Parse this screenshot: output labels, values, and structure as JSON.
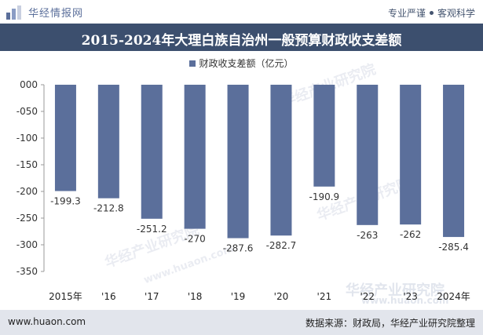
{
  "header": {
    "brand": "华经情报网",
    "slogan_left": "专业严谨",
    "slogan_right": "客观科学"
  },
  "title": "2015-2024年大理白族自治州一般预算财政收支差额",
  "footer": {
    "url": "www.huaon.com",
    "source": "数据来源：财政局，华经产业研究院整理"
  },
  "watermark": {
    "name": "华经产业研究院",
    "url": "www.huaon.com"
  },
  "colors": {
    "bar": "#5b6f9b",
    "title_bg": "#3c4f6e",
    "footer_bg": "#e2e5ec"
  },
  "chart_data": {
    "type": "bar",
    "categories": [
      "2015年",
      "'16",
      "'17",
      "'18",
      "'19",
      "'20",
      "'21",
      "'22",
      "'23",
      "2024年"
    ],
    "series": [
      {
        "name": "财政收支差额（亿元）",
        "values": [
          -199.3,
          -212.8,
          -251.2,
          -270,
          -287.6,
          -282.7,
          -190.9,
          -263,
          -262,
          -285.4
        ]
      }
    ],
    "data_labels": [
      "-199.3",
      "-212.8",
      "-251.2",
      "-270",
      "-287.6",
      "-282.7",
      "-190.9",
      "-263",
      "-262",
      "-285.4"
    ],
    "yticks": [
      "000",
      "-050",
      "-100",
      "-150",
      "-200",
      "-250",
      "-300",
      "-350"
    ],
    "ylim": [
      -350,
      0
    ],
    "legend": "top",
    "grid": false
  }
}
